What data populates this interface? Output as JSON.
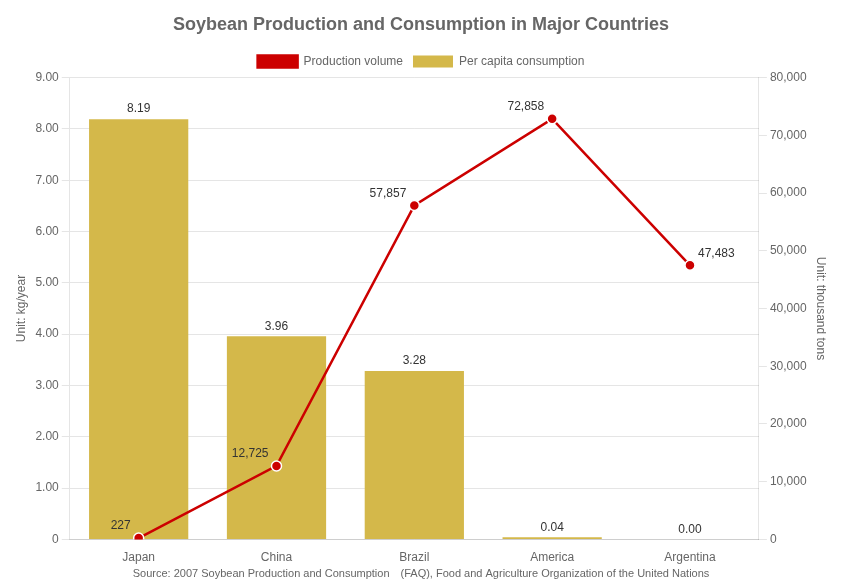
{
  "chart_data": {
    "type": "bar",
    "title": "Soybean Production and Consumption in Major Countries",
    "source": "Source: 2007 Soybean Production and Consumption　(FAQ), Food and Agriculture Organization of the United Nations",
    "ylabel": "Unit: kg/year",
    "y2label": "Unit: thousand tons",
    "categories": [
      "Japan",
      "China",
      "Brazil",
      "America",
      "Argentina"
    ],
    "series": [
      {
        "name": "Per capita consumption",
        "type": "bar",
        "color": "#d4b84a",
        "values": [
          8.19,
          3.96,
          3.28,
          0.04,
          0.0
        ],
        "value_labels": [
          "8.19",
          "3.96",
          "3.28",
          "0.04",
          "0.00"
        ]
      },
      {
        "name": "Production volume",
        "type": "line",
        "axis": "y2",
        "color": "#cc0000",
        "marker": "circle",
        "line_style": "solid",
        "values": [
          227,
          12725,
          57857,
          72858,
          47483
        ],
        "value_labels": [
          "227",
          "12,725",
          "57,857",
          "72,858",
          "47,483"
        ]
      }
    ],
    "ylim": [
      0,
      9.0
    ],
    "yticks": [
      0,
      {
        "value": 1,
        "label": "1.00"
      },
      {
        "value": 2,
        "label": "2.00"
      },
      {
        "value": 3,
        "label": "3.00"
      },
      {
        "value": 4,
        "label": "4.00"
      },
      {
        "value": 5,
        "label": "5.00"
      },
      {
        "value": 6,
        "label": "6.00"
      },
      {
        "value": 7,
        "label": "7.00"
      },
      {
        "value": 8,
        "label": "8.00"
      },
      {
        "value": 9,
        "label": "9.00"
      }
    ],
    "y2lim": [
      0,
      80000
    ],
    "y2ticks": [
      0,
      {
        "value": 10000,
        "label": "10,000"
      },
      {
        "value": 20000,
        "label": "20,000"
      },
      {
        "value": 30000,
        "label": "30,000"
      },
      {
        "value": 40000,
        "label": "40,000"
      },
      {
        "value": 50000,
        "label": "50,000"
      },
      {
        "value": 60000,
        "label": "60,000"
      },
      {
        "value": 70000,
        "label": "70,000"
      },
      {
        "value": 80000,
        "label": "80,000"
      }
    ],
    "grid": true,
    "legend": "top",
    "data_labels": true
  }
}
